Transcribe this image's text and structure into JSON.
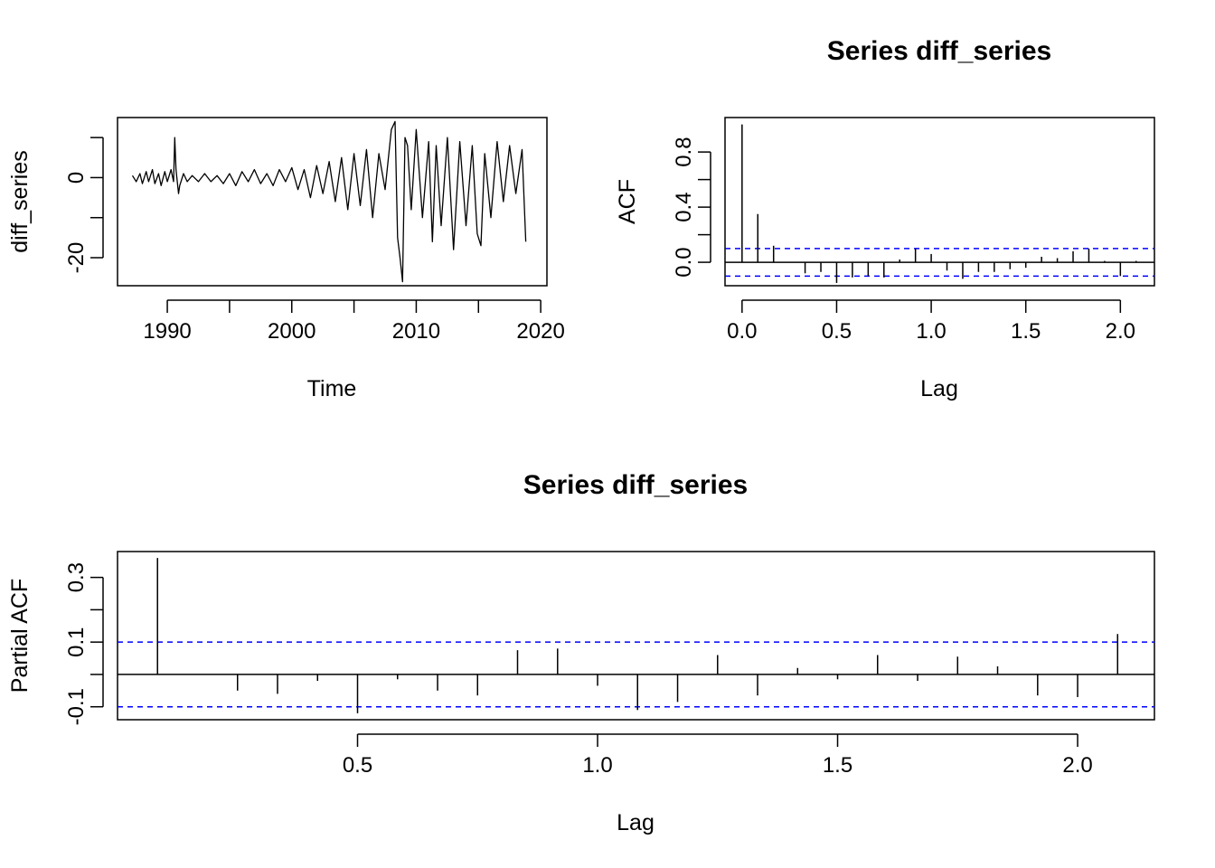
{
  "chart_data": [
    {
      "type": "line",
      "title": "",
      "xlabel": "Time",
      "ylabel": "diff_series",
      "xlim": [
        1986,
        2020.5
      ],
      "ylim": [
        -27,
        15
      ],
      "x_ticks": [
        1990,
        2000,
        2010,
        2020
      ],
      "y_ticks": [
        -20,
        -10,
        0,
        10
      ],
      "y_tick_labels": [
        "-20",
        "",
        "0",
        ""
      ],
      "series": [
        {
          "x": [
            1987.2,
            1987.5,
            1987.8,
            1988.0,
            1988.3,
            1988.5,
            1988.8,
            1989.0,
            1989.3,
            1989.5,
            1989.8,
            1990.0,
            1990.3,
            1990.5,
            1990.6,
            1990.7,
            1990.9,
            1991.0,
            1991.3,
            1991.6,
            1992.0,
            1992.5,
            1993.0,
            1993.5,
            1994.0,
            1994.5,
            1995.0,
            1995.5,
            1996.0,
            1996.5,
            1997.0,
            1997.5,
            1998.0,
            1998.5,
            1999.0,
            1999.5,
            2000.0,
            2000.5,
            2001.0,
            2001.5,
            2002.0,
            2002.5,
            2003.0,
            2003.5,
            2004.0,
            2004.5,
            2005.0,
            2005.5,
            2006.0,
            2006.5,
            2007.0,
            2007.5,
            2008.0,
            2008.3,
            2008.5,
            2008.7,
            2008.9,
            2009.1,
            2009.3,
            2009.6,
            2010.0,
            2010.5,
            2011.0,
            2011.3,
            2011.6,
            2012.0,
            2012.5,
            2013.0,
            2013.5,
            2014.0,
            2014.5,
            2014.9,
            2015.2,
            2015.5,
            2016.0,
            2016.5,
            2017.0,
            2017.5,
            2018.0,
            2018.5,
            2018.8
          ],
          "y": [
            0.5,
            -1,
            1,
            -1.5,
            1.5,
            -1,
            2,
            -1.5,
            1,
            -2,
            1.5,
            -1,
            2,
            -1,
            10,
            2,
            -4,
            -2,
            1,
            -1,
            0.5,
            -1,
            1,
            -1,
            0.5,
            -1.5,
            1,
            -2,
            1.5,
            -1,
            2,
            -1.5,
            1,
            -2,
            2,
            -1,
            2.5,
            -3,
            2,
            -5,
            3,
            -4,
            4,
            -6,
            5,
            -8,
            6,
            -7,
            7,
            -10,
            6,
            -3,
            12,
            14,
            -15,
            -20,
            -26,
            10,
            8,
            -8,
            12,
            -10,
            9,
            -16,
            8,
            -12,
            10,
            -18,
            9,
            -12,
            8,
            -14,
            -17,
            6,
            -10,
            9,
            -6,
            8,
            -4,
            7,
            -16
          ]
        }
      ]
    },
    {
      "type": "bar",
      "title": "Series  diff_series",
      "xlabel": "Lag",
      "ylabel": "ACF",
      "xlim": [
        -0.09,
        2.18
      ],
      "ylim": [
        -0.17,
        1.05
      ],
      "x_ticks": [
        0.0,
        0.5,
        1.0,
        1.5,
        2.0
      ],
      "x_tick_labels": [
        "0.0",
        "0.5",
        "1.0",
        "1.5",
        "2.0"
      ],
      "y_ticks": [
        0.0,
        0.2,
        0.4,
        0.6,
        0.8
      ],
      "y_tick_labels": [
        "0.0",
        "",
        "0.4",
        "",
        "0.8"
      ],
      "ci": 0.1,
      "lags": [
        0.0,
        0.0833,
        0.1667,
        0.25,
        0.3333,
        0.4167,
        0.5,
        0.5833,
        0.6667,
        0.75,
        0.8333,
        0.9167,
        1.0,
        1.0833,
        1.1667,
        1.25,
        1.3333,
        1.4167,
        1.5,
        1.5833,
        1.6667,
        1.75,
        1.8333,
        1.9167,
        2.0,
        2.0833
      ],
      "values": [
        1.0,
        0.35,
        0.12,
        0.0,
        -0.08,
        -0.07,
        -0.15,
        -0.11,
        -0.1,
        -0.11,
        0.02,
        0.1,
        0.06,
        -0.06,
        -0.12,
        -0.07,
        -0.07,
        -0.05,
        -0.04,
        0.04,
        0.03,
        0.08,
        0.1,
        0.01,
        -0.1,
        0.01
      ]
    },
    {
      "type": "bar",
      "title": "Series  diff_series",
      "xlabel": "Lag",
      "ylabel": "Partial ACF",
      "xlim": [
        0.0,
        2.16
      ],
      "ylim": [
        -0.14,
        0.38
      ],
      "x_ticks": [
        0.5,
        1.0,
        1.5,
        2.0
      ],
      "x_tick_labels": [
        "0.5",
        "1.0",
        "1.5",
        "2.0"
      ],
      "y_ticks": [
        -0.1,
        0.0,
        0.1,
        0.2,
        0.3
      ],
      "y_tick_labels": [
        "-0.1",
        "",
        "0.1",
        "",
        "0.3"
      ],
      "ci": 0.1,
      "lags": [
        0.0833,
        0.1667,
        0.25,
        0.3333,
        0.4167,
        0.5,
        0.5833,
        0.6667,
        0.75,
        0.8333,
        0.9167,
        1.0,
        1.0833,
        1.1667,
        1.25,
        1.3333,
        1.4167,
        1.5,
        1.5833,
        1.6667,
        1.75,
        1.8333,
        1.9167,
        2.0,
        2.0833
      ],
      "values": [
        0.36,
        0.0,
        -0.05,
        -0.06,
        -0.02,
        -0.12,
        -0.015,
        -0.05,
        -0.065,
        0.075,
        0.08,
        -0.035,
        -0.11,
        -0.085,
        0.06,
        -0.065,
        0.02,
        -0.015,
        0.06,
        -0.02,
        0.055,
        0.025,
        -0.065,
        -0.07,
        0.125
      ]
    }
  ]
}
